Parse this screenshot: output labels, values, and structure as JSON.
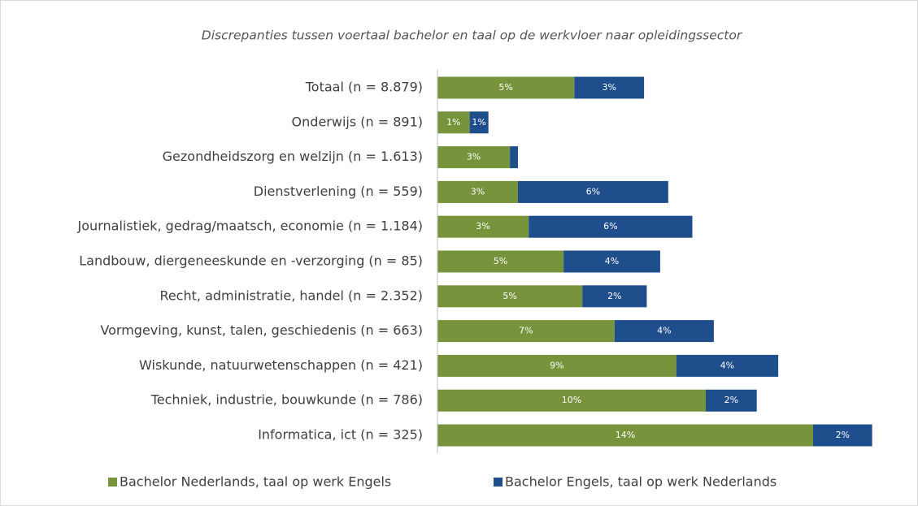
{
  "chart_data": {
    "type": "stacked_barh",
    "title": "Discrepanties tussen voertaal bachelor en taal op de werkvloer naar opleidingssector",
    "categories": [
      "Totaal (n = 8.879)",
      "Onderwijs (n = 891)",
      "Gezondheidszorg en welzijn (n = 1.613)",
      "Dienstverlening (n = 559)",
      "Journalistiek, gedrag/maatsch, economie (n = 1.184)",
      "Landbouw, diergeneeskunde en -verzorging (n = 85)",
      "Recht, administratie, handel (n = 2.352)",
      "Vormgeving, kunst, talen, geschiedenis (n = 663)",
      "Wiskunde, natuurwetenschappen (n = 421)",
      "Techniek, industrie, bouwkunde (n = 786)",
      "Informatica, ict (n = 325)"
    ],
    "series": [
      {
        "name": "Bachelor Nederlands, taal op werk Engels",
        "color": "#77933c",
        "values": [
          5.1,
          1.2,
          2.7,
          3.0,
          3.4,
          4.7,
          5.4,
          6.6,
          8.9,
          10.0,
          14.0
        ],
        "value_labels": [
          "5%",
          "1%",
          "3%",
          "3%",
          "3%",
          "5%",
          "5%",
          "7%",
          "9%",
          "10%",
          "14%"
        ]
      },
      {
        "name": "Bachelor Engels, taal op werk Nederlands",
        "color": "#1f4e8c",
        "values": [
          2.6,
          0.7,
          0.3,
          5.6,
          6.1,
          3.6,
          2.4,
          3.7,
          3.8,
          1.9,
          2.2
        ],
        "value_labels": [
          "3%",
          "1%",
          null,
          "6%",
          "6%",
          "4%",
          "2%",
          "4%",
          "4%",
          "2%",
          "2%"
        ]
      }
    ],
    "xlim": [
      0,
      16.5
    ],
    "legend": "bottom"
  }
}
